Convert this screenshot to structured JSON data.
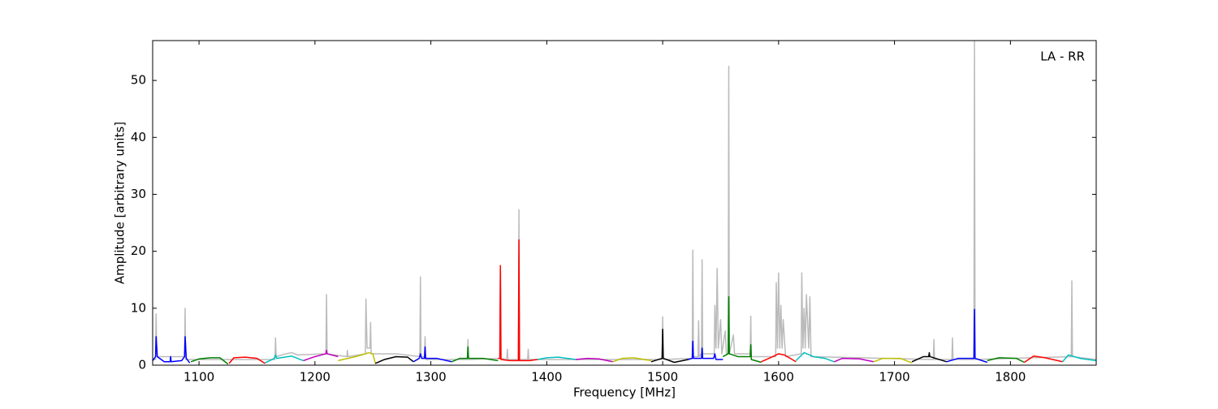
{
  "chart_data": {
    "type": "line",
    "xlabel": "Frequency [MHz]",
    "ylabel": "Amplitude [arbitrary units]",
    "annotation": "LA - RR",
    "xlim": [
      1060,
      1874
    ],
    "ylim": [
      0,
      57
    ],
    "xticks": [
      1100,
      1200,
      1300,
      1400,
      1500,
      1600,
      1700,
      1800
    ],
    "yticks": [
      0,
      10,
      20,
      30,
      40,
      50
    ],
    "series": [
      {
        "color": "#bbbbbb",
        "x": [
          1060,
          1062.5,
          1063,
          1063.5,
          1087.5,
          1088,
          1088.5,
          1165.5,
          1166,
          1166.5,
          1175,
          1180,
          1185,
          1209.5,
          1210,
          1210.5,
          1227.5,
          1228,
          1228.5,
          1243.5,
          1244,
          1245,
          1247.5,
          1248,
          1248.5,
          1270,
          1290.5,
          1291,
          1291.5,
          1294.5,
          1295,
          1295.5,
          1331.5,
          1332,
          1332.5,
          1359.5,
          1360,
          1360.5,
          1365.5,
          1366,
          1366.5,
          1375.5,
          1376,
          1376.5,
          1383.5,
          1384,
          1384.5,
          1499.5,
          1500,
          1500.5,
          1525.5,
          1526,
          1526.5,
          1530.5,
          1531,
          1531.5,
          1533.5,
          1534,
          1534.5,
          1544.5,
          1545,
          1546,
          1547,
          1548,
          1550,
          1551,
          1554,
          1555,
          1556.5,
          1557,
          1557.5,
          1561,
          1562,
          1575.5,
          1576,
          1576.5,
          1597.5,
          1598,
          1599,
          1600,
          1601,
          1602,
          1603,
          1604,
          1606,
          1619.5,
          1620,
          1621,
          1622,
          1623,
          1624,
          1626,
          1627,
          1628,
          1733.5,
          1734,
          1734.5,
          1749.5,
          1750,
          1750.5,
          1768.5,
          1769,
          1769.5,
          1852.5,
          1853,
          1853.5,
          1874
        ],
        "values": [
          1,
          1,
          9,
          1.5,
          1.5,
          10,
          1,
          1,
          4.8,
          1.5,
          2,
          2.2,
          1.8,
          2,
          12.4,
          2,
          1.5,
          2.6,
          1.5,
          2,
          11.6,
          3,
          3,
          7.5,
          2,
          2,
          1.5,
          15.5,
          1.5,
          1.5,
          5,
          1,
          1,
          4.5,
          1,
          1.2,
          17,
          1.2,
          1,
          2.8,
          1,
          1,
          27.3,
          1,
          1,
          2.8,
          1,
          1,
          8.5,
          1,
          1.2,
          20.2,
          1.5,
          1.5,
          7.8,
          1.5,
          2,
          18.5,
          2,
          2,
          10.5,
          3,
          17,
          3,
          8,
          2,
          6,
          2,
          2,
          52.5,
          2,
          5.3,
          2,
          2,
          8.6,
          1.5,
          1.5,
          14.5,
          3,
          16.2,
          3,
          10.5,
          3,
          8,
          1.5,
          2,
          16.2,
          3,
          10,
          3,
          12.4,
          3,
          12,
          1.5,
          1,
          4.5,
          1,
          1,
          4.8,
          1,
          1,
          57,
          1,
          1.5,
          14.8,
          1.5,
          1
        ]
      },
      {
        "color": "#0000ff",
        "x": [
          1060,
          1062.5,
          1063,
          1064,
          1070,
          1075,
          1075.5,
          1076,
          1085,
          1087.5,
          1088,
          1089,
          1092
        ],
        "values": [
          0.8,
          1.5,
          5,
          1.5,
          0.6,
          0.6,
          1.5,
          0.6,
          0.8,
          1.5,
          5,
          1.2,
          0.4
        ]
      },
      {
        "color": "#008000",
        "x": [
          1093,
          1100,
          1110,
          1118,
          1125
        ],
        "values": [
          0.6,
          1.1,
          1.3,
          1.3,
          0.2
        ]
      },
      {
        "color": "#ff0000",
        "x": [
          1126,
          1130,
          1140,
          1150,
          1157
        ],
        "values": [
          0.3,
          1.3,
          1.4,
          1.2,
          0.3
        ]
      },
      {
        "color": "#00bfbf",
        "x": [
          1157,
          1165,
          1166,
          1167,
          1180,
          1190
        ],
        "values": [
          0.4,
          1.2,
          1.8,
          1.2,
          1.6,
          0.8
        ]
      },
      {
        "color": "#bf00bf",
        "x": [
          1190,
          1200,
          1209.5,
          1210,
          1210.5,
          1220
        ],
        "values": [
          0.8,
          1.5,
          2,
          2.6,
          2,
          1.5
        ]
      },
      {
        "color": "#bfbf00",
        "x": [
          1220,
          1235,
          1244,
          1246,
          1250,
          1252
        ],
        "values": [
          0.8,
          1.5,
          2,
          2.2,
          2,
          0.4
        ]
      },
      {
        "color": "#000000",
        "x": [
          1252,
          1260,
          1270,
          1280,
          1285
        ],
        "values": [
          0.3,
          1,
          1.5,
          1.4,
          0.6
        ]
      },
      {
        "color": "#0000ff",
        "x": [
          1285,
          1290,
          1291,
          1292,
          1294.5,
          1295,
          1295.5,
          1305,
          1318
        ],
        "values": [
          0.6,
          1.2,
          2,
          1.2,
          1.2,
          3.2,
          1.2,
          1.2,
          0.6
        ]
      },
      {
        "color": "#008000",
        "x": [
          1318,
          1325,
          1331.5,
          1332,
          1332.5,
          1345,
          1358
        ],
        "values": [
          0.6,
          1.2,
          1.2,
          3.2,
          1.2,
          1.2,
          0.8
        ]
      },
      {
        "color": "#ff0000",
        "x": [
          1358,
          1359.5,
          1360,
          1360.5,
          1368,
          1375.5,
          1376,
          1376.5,
          1385,
          1392
        ],
        "values": [
          1.2,
          1.2,
          17.5,
          1,
          0.8,
          0.8,
          22,
          0.8,
          0.8,
          1
        ]
      },
      {
        "color": "#00bfbf",
        "x": [
          1392,
          1400,
          1410,
          1425
        ],
        "values": [
          1,
          1.3,
          1.4,
          1
        ]
      },
      {
        "color": "#bf00bf",
        "x": [
          1425,
          1435,
          1445,
          1457
        ],
        "values": [
          1,
          1.2,
          1.1,
          0.6
        ]
      },
      {
        "color": "#bfbf00",
        "x": [
          1457,
          1465,
          1475,
          1490
        ],
        "values": [
          0.6,
          1.2,
          1.3,
          0.8
        ]
      },
      {
        "color": "#000000",
        "x": [
          1490,
          1499.5,
          1500,
          1500.5,
          1510,
          1522
        ],
        "values": [
          0.6,
          1.2,
          6.3,
          1.2,
          0.5,
          1
        ]
      },
      {
        "color": "#0000ff",
        "x": [
          1522,
          1525.5,
          1526,
          1526.5,
          1533.5,
          1534,
          1534.5,
          1544,
          1545,
          1546,
          1552
        ],
        "values": [
          1,
          1.2,
          4.2,
          1.2,
          1.2,
          3,
          1.2,
          1.2,
          2,
          1,
          1
        ]
      },
      {
        "color": "#008000",
        "x": [
          1552,
          1556.5,
          1557,
          1557.5,
          1565,
          1575.5,
          1576,
          1576.5,
          1585
        ],
        "values": [
          1.5,
          2,
          12,
          2,
          1.5,
          1.5,
          3.6,
          1,
          0.5
        ]
      },
      {
        "color": "#ff0000",
        "x": [
          1585,
          1595,
          1600,
          1605,
          1615
        ],
        "values": [
          0.6,
          1.5,
          2,
          1.8,
          0.6
        ]
      },
      {
        "color": "#00bfbf",
        "x": [
          1615,
          1620,
          1622,
          1630,
          1640,
          1648
        ],
        "values": [
          0.8,
          1.8,
          2.2,
          1.5,
          1.2,
          0.6
        ]
      },
      {
        "color": "#bf00bf",
        "x": [
          1648,
          1655,
          1670,
          1682
        ],
        "values": [
          0.6,
          1.2,
          1.1,
          0.6
        ]
      },
      {
        "color": "#bfbf00",
        "x": [
          1682,
          1690,
          1705,
          1715
        ],
        "values": [
          0.6,
          1.2,
          1.2,
          0.4
        ]
      },
      {
        "color": "#000000",
        "x": [
          1715,
          1725,
          1729.5,
          1730,
          1730.5,
          1745
        ],
        "values": [
          0.6,
          1.5,
          1.5,
          2.2,
          1.5,
          0.6
        ]
      },
      {
        "color": "#0000ff",
        "x": [
          1745,
          1755,
          1768.5,
          1769,
          1769.5,
          1780
        ],
        "values": [
          0.6,
          1.2,
          1.2,
          9.8,
          1.2,
          0.5
        ]
      },
      {
        "color": "#008000",
        "x": [
          1780,
          1790,
          1805,
          1812
        ],
        "values": [
          0.8,
          1.3,
          1.2,
          0.5
        ]
      },
      {
        "color": "#ff0000",
        "x": [
          1812,
          1820,
          1830,
          1845
        ],
        "values": [
          0.5,
          1.6,
          1.3,
          0.6
        ]
      },
      {
        "color": "#00bfbf",
        "x": [
          1845,
          1850,
          1860,
          1874
        ],
        "values": [
          0.6,
          1.8,
          1.2,
          0.8
        ]
      }
    ]
  }
}
